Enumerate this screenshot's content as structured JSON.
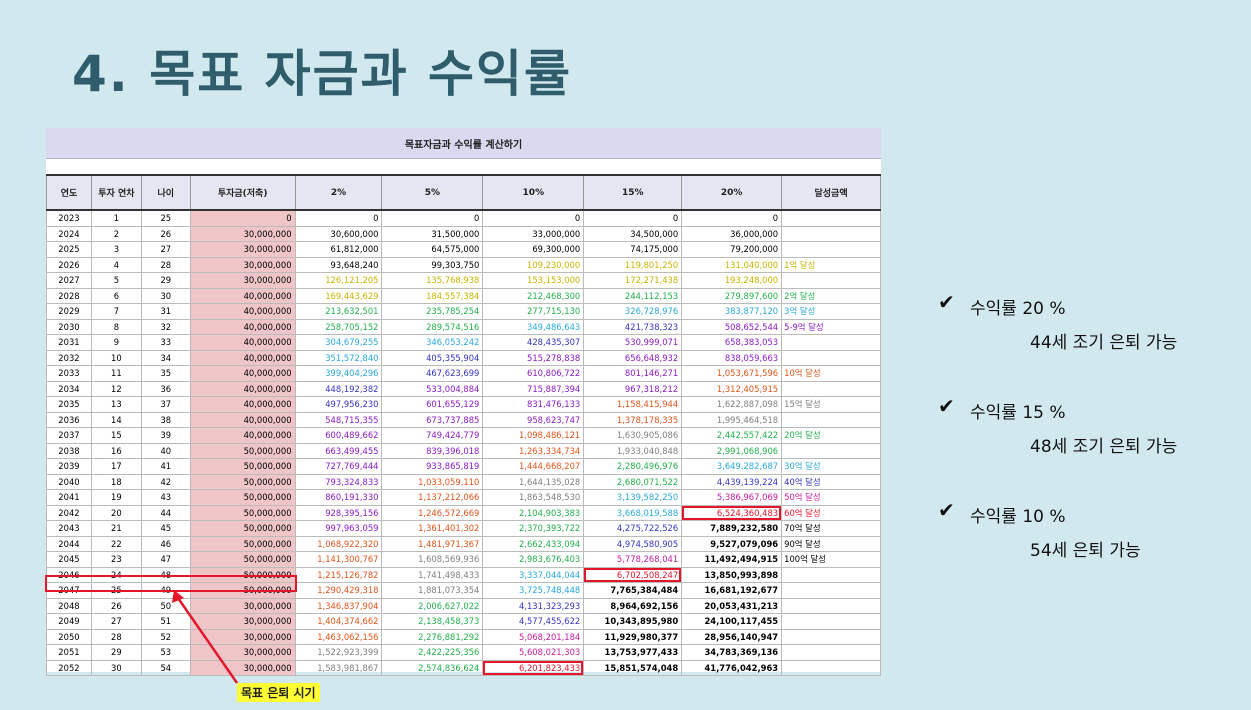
{
  "title": "4. 목표 자금과 수익률",
  "sheet": {
    "banner": "목표자금과 수익률 계산하기",
    "headers": [
      "연도",
      "투자 연차",
      "나이",
      "투자금(저축)",
      "2%",
      "5%",
      "10%",
      "15%",
      "20%",
      "달성금액"
    ],
    "rows": [
      [
        "2023",
        "1",
        "25",
        "0",
        "0",
        "0",
        "0",
        "0",
        "0",
        ""
      ],
      [
        "2024",
        "2",
        "26",
        "30,000,000",
        "30,600,000",
        "31,500,000",
        "33,000,000",
        "34,500,000",
        "36,000,000",
        ""
      ],
      [
        "2025",
        "3",
        "27",
        "30,000,000",
        "61,812,000",
        "64,575,000",
        "69,300,000",
        "74,175,000",
        "79,200,000",
        ""
      ],
      [
        "2026",
        "4",
        "28",
        "30,000,000",
        "93,648,240",
        "99,303,750",
        "109,230,000",
        "119,801,250",
        "131,040,000",
        "1억 달성"
      ],
      [
        "2027",
        "5",
        "29",
        "30,000,000",
        "126,121,205",
        "135,768,938",
        "153,153,000",
        "172,271,438",
        "193,248,000",
        ""
      ],
      [
        "2028",
        "6",
        "30",
        "40,000,000",
        "169,443,629",
        "184,557,384",
        "212,468,300",
        "244,112,153",
        "279,897,600",
        "2억 달성"
      ],
      [
        "2029",
        "7",
        "31",
        "40,000,000",
        "213,632,501",
        "235,785,254",
        "277,715,130",
        "326,728,976",
        "383,877,120",
        "3억 달성"
      ],
      [
        "2030",
        "8",
        "32",
        "40,000,000",
        "258,705,152",
        "289,574,516",
        "349,486,643",
        "421,738,323",
        "508,652,544",
        "5-9억 달성"
      ],
      [
        "2031",
        "9",
        "33",
        "40,000,000",
        "304,679,255",
        "346,053,242",
        "428,435,307",
        "530,999,071",
        "658,383,053",
        ""
      ],
      [
        "2032",
        "10",
        "34",
        "40,000,000",
        "351,572,840",
        "405,355,904",
        "515,278,838",
        "656,648,932",
        "838,059,663",
        ""
      ],
      [
        "2033",
        "11",
        "35",
        "40,000,000",
        "399,404,296",
        "467,623,699",
        "610,806,722",
        "801,146,271",
        "1,053,671,596",
        "10억 달성"
      ],
      [
        "2034",
        "12",
        "36",
        "40,000,000",
        "448,192,382",
        "533,004,884",
        "715,887,394",
        "967,318,212",
        "1,312,405,915",
        ""
      ],
      [
        "2035",
        "13",
        "37",
        "40,000,000",
        "497,956,230",
        "601,655,129",
        "831,476,133",
        "1,158,415,944",
        "1,622,887,098",
        "15억 달성"
      ],
      [
        "2036",
        "14",
        "38",
        "40,000,000",
        "548,715,355",
        "673,737,885",
        "958,623,747",
        "1,378,178,335",
        "1,995,464,518",
        ""
      ],
      [
        "2037",
        "15",
        "39",
        "40,000,000",
        "600,489,662",
        "749,424,779",
        "1,098,486,121",
        "1,630,905,086",
        "2,442,557,422",
        "20억 달성"
      ],
      [
        "2038",
        "16",
        "40",
        "50,000,000",
        "663,499,455",
        "839,396,018",
        "1,263,334,734",
        "1,933,040,848",
        "2,991,068,906",
        ""
      ],
      [
        "2039",
        "17",
        "41",
        "50,000,000",
        "727,769,444",
        "933,865,819",
        "1,444,668,207",
        "2,280,496,976",
        "3,649,282,687",
        "30억 달성"
      ],
      [
        "2040",
        "18",
        "42",
        "50,000,000",
        "793,324,833",
        "1,033,059,110",
        "1,644,135,028",
        "2,680,071,522",
        "4,439,139,224",
        "40억 달성"
      ],
      [
        "2041",
        "19",
        "43",
        "50,000,000",
        "860,191,330",
        "1,137,212,066",
        "1,863,548,530",
        "3,139,582,250",
        "5,386,967,069",
        "50억 달성"
      ],
      [
        "2042",
        "20",
        "44",
        "50,000,000",
        "928,395,156",
        "1,246,572,669",
        "2,104,903,383",
        "3,668,019,588",
        "6,524,360,483",
        "60억 달성"
      ],
      [
        "2043",
        "21",
        "45",
        "50,000,000",
        "997,963,059",
        "1,361,401,302",
        "2,370,393,722",
        "4,275,722,526",
        "7,889,232,580",
        "70억 달성"
      ],
      [
        "2044",
        "22",
        "46",
        "50,000,000",
        "1,068,922,320",
        "1,481,971,367",
        "2,662,433,094",
        "4,974,580,905",
        "9,527,079,096",
        "90억 달성"
      ],
      [
        "2045",
        "23",
        "47",
        "50,000,000",
        "1,141,300,767",
        "1,608,569,936",
        "2,983,676,403",
        "5,778,268,041",
        "11,492,494,915",
        "100억 달성"
      ],
      [
        "2046",
        "24",
        "48",
        "50,000,000",
        "1,215,126,782",
        "1,741,498,433",
        "3,337,044,044",
        "6,702,508,247",
        "13,850,993,898",
        ""
      ],
      [
        "2047",
        "25",
        "49",
        "50,000,000",
        "1,290,429,318",
        "1,881,073,354",
        "3,725,748,448",
        "7,765,384,484",
        "16,681,192,677",
        ""
      ],
      [
        "2048",
        "26",
        "50",
        "30,000,000",
        "1,346,837,904",
        "2,006,627,022",
        "4,131,323,293",
        "8,964,692,156",
        "20,053,431,213",
        ""
      ],
      [
        "2049",
        "27",
        "51",
        "30,000,000",
        "1,404,374,662",
        "2,138,458,373",
        "4,577,455,622",
        "10,343,895,980",
        "24,100,117,455",
        ""
      ],
      [
        "2050",
        "28",
        "52",
        "30,000,000",
        "1,463,062,156",
        "2,276,881,292",
        "5,068,201,184",
        "11,929,980,377",
        "28,956,140,947",
        ""
      ],
      [
        "2051",
        "29",
        "53",
        "30,000,000",
        "1,522,923,399",
        "2,422,225,356",
        "5,608,021,303",
        "13,753,977,433",
        "34,783,369,136",
        ""
      ],
      [
        "2052",
        "30",
        "54",
        "30,000,000",
        "1,583,981,867",
        "2,574,836,624",
        "6,201,823,433",
        "15,851,574,048",
        "41,776,042,963",
        ""
      ]
    ],
    "highlighted_cells": [
      {
        "row": 19,
        "col": 8
      },
      {
        "row": 23,
        "col": 7
      },
      {
        "row": 29,
        "col": 6
      }
    ],
    "highlighted_row": 24,
    "value_colors": {
      "below_100m": "#000000",
      "100m": "#c9b400",
      "200m": "#22b04c",
      "300m": "#28a8e0",
      "400m": "#3535c8",
      "500m": "#8b1ac8",
      "1b": "#e0541a",
      "1_5b": "#808080",
      "2b": "#22b04c",
      "3b": "#28a8e0",
      "4b": "#3535c8",
      "5b": "#c81aa0",
      "6b": "#e3162b",
      "7b_plus": "#000000"
    }
  },
  "callout": "목표 은퇴 시기",
  "checklist": [
    {
      "rate": "수익률 20 %",
      "desc": "44세 조기 은퇴 가능"
    },
    {
      "rate": "수익률 15 %",
      "desc": "48세 조기 은퇴 가능"
    },
    {
      "rate": "수익률 10 %",
      "desc": "54세 은퇴 가능"
    }
  ],
  "colors": {
    "background": "#d2e8ef",
    "title": "#2f5d6b",
    "accent_red": "#e3162b",
    "invest_fill": "#efc5c8",
    "callout_bg": "#ffff33"
  }
}
